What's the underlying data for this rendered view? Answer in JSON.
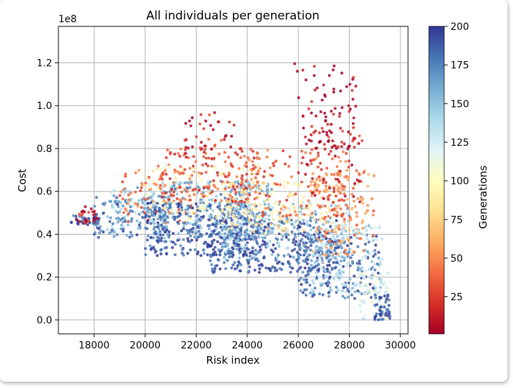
{
  "chart_data": {
    "type": "scatter",
    "title": "All individuals per generation",
    "xlabel": "Risk index",
    "ylabel": "Cost",
    "y_offset_label": "1e8",
    "xlim": [
      16600,
      30300
    ],
    "ylim": [
      -0.065,
      1.37
    ],
    "x_ticks": [
      18000,
      20000,
      22000,
      24000,
      26000,
      28000,
      30000
    ],
    "x_tick_labels": [
      "18000",
      "20000",
      "22000",
      "24000",
      "26000",
      "28000",
      "30000"
    ],
    "y_ticks": [
      0.0,
      0.2,
      0.4,
      0.6,
      0.8,
      1.0,
      1.2
    ],
    "y_tick_labels": [
      "0.0",
      "0.2",
      "0.4",
      "0.6",
      "0.8",
      "1.0",
      "1.2"
    ],
    "grid": true,
    "colorbar": {
      "label": "Generations",
      "colormap": "RdYlBu",
      "range": [
        1,
        200
      ],
      "ticks": [
        25,
        50,
        75,
        100,
        125,
        150,
        175,
        200
      ],
      "tick_labels": [
        "25",
        "50",
        "75",
        "100",
        "125",
        "150",
        "175",
        "200"
      ]
    },
    "series": [
      {
        "color_by": "generation",
        "points_per_cluster": 220,
        "clusters": [
          {
            "gen": 190,
            "count": 40,
            "x_range": [
              17100,
              18200
            ],
            "y_range": [
              0.44,
              0.49
            ]
          },
          {
            "gen": 8,
            "count": 25,
            "x_range": [
              17300,
              18300
            ],
            "y_range": [
              0.45,
              0.53
            ]
          },
          {
            "gen": 180,
            "count": 120,
            "x_range": [
              18000,
              21000
            ],
            "y_range": [
              0.38,
              0.58
            ]
          },
          {
            "gen": 150,
            "count": 90,
            "x_range": [
              18500,
              21000
            ],
            "y_range": [
              0.42,
              0.62
            ]
          },
          {
            "gen": 40,
            "count": 90,
            "x_range": [
              19000,
              22000
            ],
            "y_range": [
              0.45,
              0.7
            ]
          },
          {
            "gen": 190,
            "count": 320,
            "x_range": [
              20000,
              24500
            ],
            "y_range": [
              0.3,
              0.55
            ]
          },
          {
            "gen": 160,
            "count": 260,
            "x_range": [
              20500,
              25000
            ],
            "y_range": [
              0.38,
              0.65
            ]
          },
          {
            "gen": 100,
            "count": 150,
            "x_range": [
              20000,
              25000
            ],
            "y_range": [
              0.45,
              0.72
            ]
          },
          {
            "gen": 30,
            "count": 140,
            "x_range": [
              20500,
              24500
            ],
            "y_range": [
              0.55,
              0.8
            ]
          },
          {
            "gen": 190,
            "count": 330,
            "x_range": [
              22500,
              27500
            ],
            "y_range": [
              0.22,
              0.48
            ]
          },
          {
            "gen": 150,
            "count": 230,
            "x_range": [
              23000,
              28000
            ],
            "y_range": [
              0.28,
              0.55
            ]
          },
          {
            "gen": 85,
            "count": 150,
            "x_range": [
              23000,
              27500
            ],
            "y_range": [
              0.4,
              0.65
            ]
          },
          {
            "gen": 35,
            "count": 130,
            "x_range": [
              23500,
              28000
            ],
            "y_range": [
              0.48,
              0.8
            ]
          },
          {
            "gen": 185,
            "count": 180,
            "x_range": [
              26000,
              29200
            ],
            "y_range": [
              0.1,
              0.4
            ]
          },
          {
            "gen": 140,
            "count": 150,
            "x_range": [
              26500,
              29300
            ],
            "y_range": [
              0.12,
              0.45
            ]
          },
          {
            "gen": 50,
            "count": 140,
            "x_range": [
              26500,
              29000
            ],
            "y_range": [
              0.3,
              0.7
            ]
          },
          {
            "gen": 15,
            "count": 60,
            "x_range": [
              26000,
              28500
            ],
            "y_range": [
              0.55,
              0.9
            ]
          },
          {
            "gen": 5,
            "count": 55,
            "x_range": [
              26100,
              28200
            ],
            "y_range": [
              0.8,
              1.0
            ]
          },
          {
            "gen": 3,
            "count": 30,
            "x_range": [
              25800,
              28300
            ],
            "y_range": [
              0.95,
              1.2
            ]
          },
          {
            "gen": 120,
            "count": 70,
            "x_range": [
              28400,
              29600
            ],
            "y_range": [
              0.0,
              0.22
            ]
          },
          {
            "gen": 190,
            "count": 45,
            "x_range": [
              29000,
              29600
            ],
            "y_range": [
              0.0,
              0.12
            ]
          },
          {
            "gen": 20,
            "count": 45,
            "x_range": [
              21500,
              23500
            ],
            "y_range": [
              0.75,
              0.97
            ]
          }
        ]
      }
    ]
  }
}
